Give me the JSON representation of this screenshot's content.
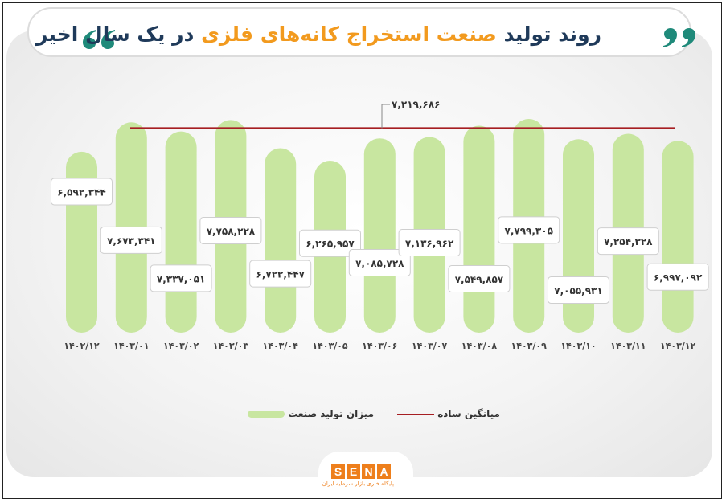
{
  "title": {
    "part1": "روند تولید ",
    "highlight": "صنعت استخراج کانه‌های فلزی",
    "part2": " در یک سال اخیر"
  },
  "logo": {
    "letters": [
      "S",
      "E",
      "N",
      "A"
    ],
    "tagline": "پایگاه خبری بازار سرمایه ایران"
  },
  "colors": {
    "bar": "#c8e6a0",
    "average_line": "#a61e22",
    "title": "#1f3a5a",
    "accent": "#f29a1e",
    "quote": "#1f8a7a"
  },
  "chart_data": {
    "type": "bar",
    "categories": [
      "۱۴۰۲/۱۲",
      "۱۴۰۳/۰۱",
      "۱۴۰۳/۰۲",
      "۱۴۰۳/۰۳",
      "۱۴۰۳/۰۴",
      "۱۴۰۳/۰۵",
      "۱۴۰۳/۰۶",
      "۱۴۰۳/۰۷",
      "۱۴۰۳/۰۸",
      "۱۴۰۳/۰۹",
      "۱۴۰۳/۱۰",
      "۱۴۰۳/۱۱",
      "۱۴۰۳/۱۲"
    ],
    "series": [
      {
        "name": "میزان تولید صنعت",
        "values": [
          6592344,
          7673341,
          7337051,
          7758228,
          6722447,
          6265957,
          7085728,
          7136962,
          7549857,
          7799305,
          7055931,
          7254328,
          6997092
        ],
        "labels": [
          "۶,۵۹۲,۳۴۴",
          "۷,۶۷۳,۳۴۱",
          "۷,۳۳۷,۰۵۱",
          "۷,۷۵۸,۲۲۸",
          "۶,۷۲۲,۴۴۷",
          "۶,۲۶۵,۹۵۷",
          "۷,۰۸۵,۷۲۸",
          "۷,۱۳۶,۹۶۲",
          "۷,۵۴۹,۸۵۷",
          "۷,۷۹۹,۳۰۵",
          "۷,۰۵۵,۹۳۱",
          "۷,۲۵۴,۳۲۸",
          "۶,۹۹۷,۰۹۲"
        ]
      }
    ],
    "average": {
      "name": "میانگین ساده",
      "value": 7219686,
      "label": "۷,۲۱۹,۶۸۶"
    },
    "ylim": [
      0,
      8000000
    ],
    "grid": false,
    "legend_position": "bottom"
  }
}
